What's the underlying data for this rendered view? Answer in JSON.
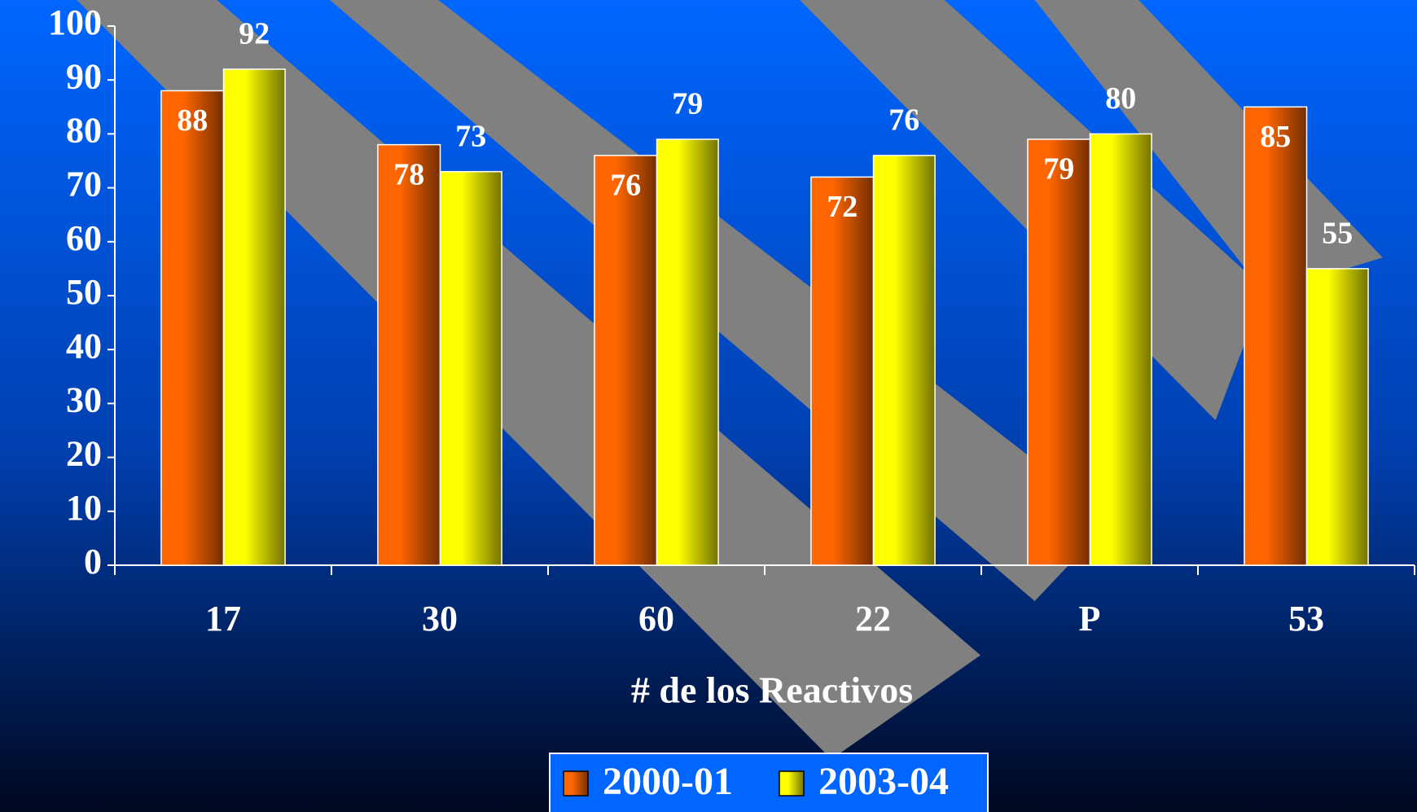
{
  "chart_data": {
    "type": "bar",
    "x_label": "# de los Reactivos",
    "categories": [
      "17",
      "30",
      "60",
      "22",
      "P",
      "53"
    ],
    "series": [
      {
        "name": "2000-01",
        "color": "#ff6600",
        "values": [
          88,
          78,
          76,
          72,
          79,
          85
        ]
      },
      {
        "name": "2003-04",
        "color": "#ffff00",
        "values": [
          92,
          73,
          79,
          76,
          80,
          55
        ]
      }
    ],
    "ylim": [
      0,
      100
    ],
    "yticks": [
      0,
      10,
      20,
      30,
      40,
      50,
      60,
      70,
      80,
      90,
      100
    ]
  }
}
